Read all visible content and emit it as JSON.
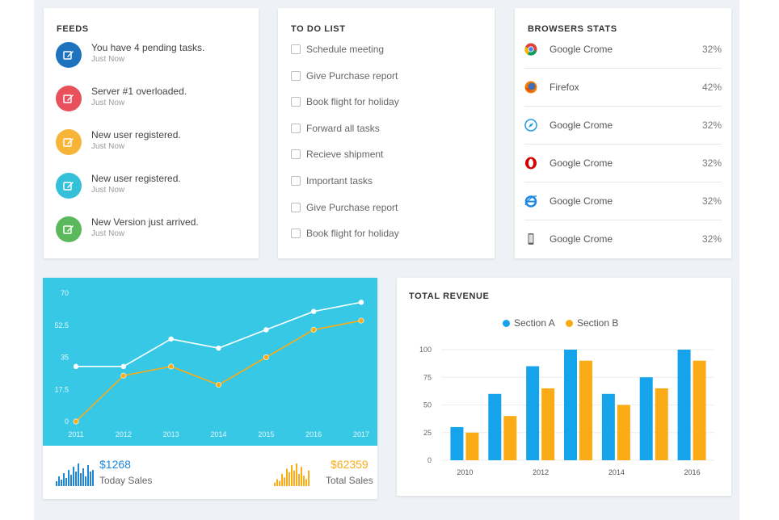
{
  "colors": {
    "feed_icons": [
      "#1e73be",
      "#e8505b",
      "#f7b538",
      "#35c0d9",
      "#5cb85c"
    ],
    "cyan": "#37c8e6",
    "blue_bar": "#15a4ec",
    "orange": "#fbab16"
  },
  "feeds": {
    "title": "FEEDS",
    "items": [
      {
        "text": "You have 4 pending tasks.",
        "time": "Just Now",
        "icon": "edit-icon"
      },
      {
        "text": "Server #1 overloaded.",
        "time": "Just Now",
        "icon": "edit-icon"
      },
      {
        "text": "New user registered.",
        "time": "Just Now",
        "icon": "edit-icon"
      },
      {
        "text": "New user registered.",
        "time": "Just Now",
        "icon": "edit-icon"
      },
      {
        "text": "New Version just arrived.",
        "time": "Just Now",
        "icon": "edit-icon"
      }
    ]
  },
  "todo": {
    "title": "TO DO LIST",
    "items": [
      "Schedule meeting",
      "Give Purchase report",
      "Book flight for holiday",
      "Forward all tasks",
      "Recieve shipment",
      "Important tasks",
      "Give Purchase report",
      "Book flight for holiday"
    ]
  },
  "browsers": {
    "title": "BROWSERS STATS",
    "items": [
      {
        "name": "Google Crome",
        "pct": "32%",
        "icon": "chrome-icon"
      },
      {
        "name": "Firefox",
        "pct": "42%",
        "icon": "firefox-icon"
      },
      {
        "name": "Google Crome",
        "pct": "32%",
        "icon": "safari-icon"
      },
      {
        "name": "Google Crome",
        "pct": "32%",
        "icon": "opera-icon"
      },
      {
        "name": "Google Crome",
        "pct": "32%",
        "icon": "ie-icon"
      },
      {
        "name": "Google Crome",
        "pct": "32%",
        "icon": "mobile-icon"
      }
    ]
  },
  "sales": {
    "today_value": "$1268",
    "today_label": "Today Sales",
    "total_value": "$62359",
    "total_label": "Total Sales",
    "today_spark": [
      3,
      6,
      4,
      8,
      5,
      10,
      7,
      12,
      9,
      14,
      8,
      11,
      6,
      13,
      9,
      10
    ],
    "total_spark": [
      2,
      4,
      3,
      7,
      5,
      10,
      8,
      12,
      9,
      13,
      7,
      11,
      6,
      4,
      9
    ]
  },
  "chart_data": [
    {
      "type": "line",
      "x": [
        "2011",
        "2012",
        "2013",
        "2014",
        "2015",
        "2016",
        "2017"
      ],
      "yticks": [
        "0",
        "17.5",
        "35",
        "52.5",
        "70"
      ],
      "ylim": [
        0,
        70
      ],
      "series": [
        {
          "values": [
            30,
            30,
            45,
            40,
            50,
            60,
            65
          ],
          "color": "#ffffff"
        },
        {
          "values": [
            0,
            25,
            30,
            20,
            35,
            50,
            55
          ],
          "color": "#fbab16"
        }
      ]
    },
    {
      "type": "bar",
      "title": "TOTAL REVENUE",
      "categories": [
        "2010",
        "2011",
        "2012",
        "2013",
        "2014",
        "2015",
        "2016"
      ],
      "xticks": [
        "2010",
        "2012",
        "2014",
        "2016"
      ],
      "yticks": [
        "0",
        "25",
        "50",
        "75",
        "100"
      ],
      "ylim": [
        0,
        100
      ],
      "series": [
        {
          "name": "Section A",
          "values": [
            30,
            60,
            85,
            100,
            60,
            75,
            100
          ],
          "color": "#15a4ec"
        },
        {
          "name": "Section B",
          "values": [
            25,
            40,
            65,
            90,
            50,
            65,
            90
          ],
          "color": "#fbab16"
        }
      ],
      "legend": "top-center"
    }
  ]
}
